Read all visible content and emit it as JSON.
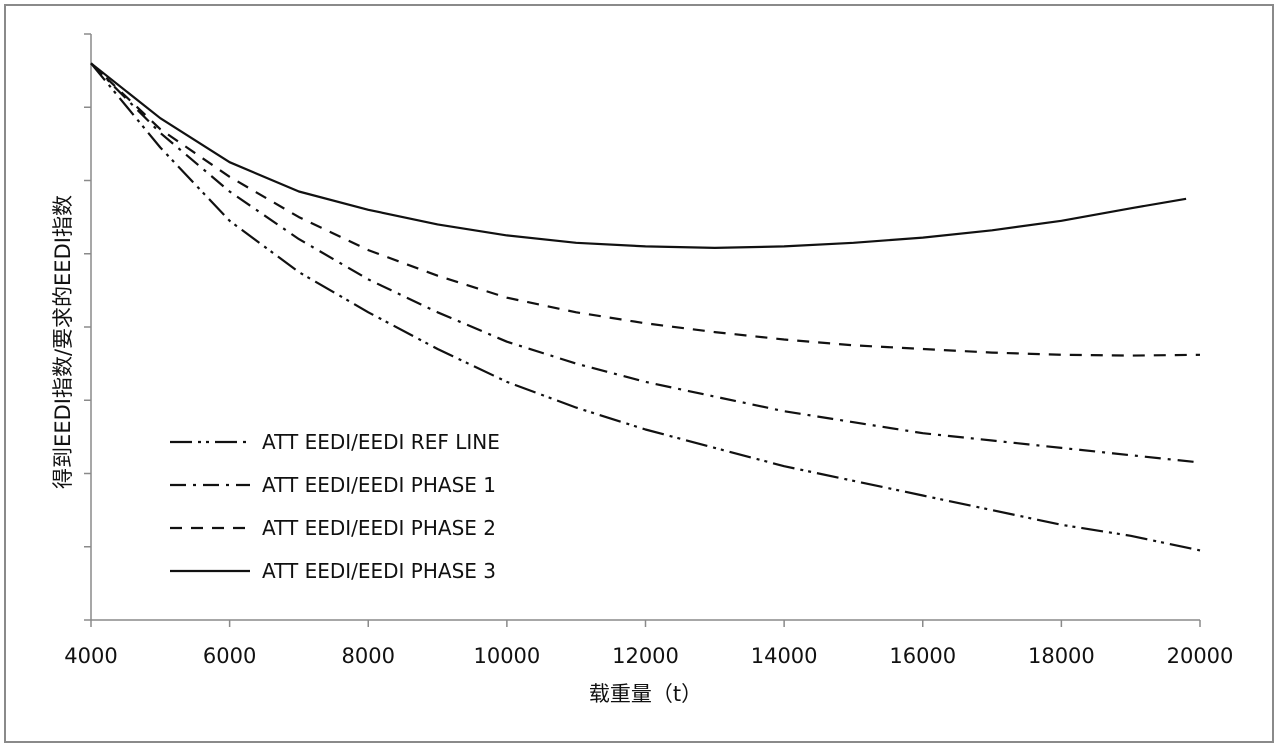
{
  "chart_data": {
    "type": "line",
    "title": "",
    "xlabel": "载重量（t）",
    "ylabel": "得到EEDI指数/要求的EEDI指数",
    "xlim": [
      4000,
      20000
    ],
    "ylim": [
      0,
      8
    ],
    "x_ticks": [
      "4000",
      "6000",
      "8000",
      "10000",
      "12000",
      "14000",
      "16000",
      "18000",
      "20000"
    ],
    "y_tick_labels_shown": false,
    "grid": false,
    "legend_position": "lower-left",
    "series": [
      {
        "name": "ATT EEDI/EEDI REF LINE",
        "dash": "dash-dot-dot",
        "points": [
          [
            4000,
            7.6
          ],
          [
            5000,
            6.45
          ],
          [
            6000,
            5.45
          ],
          [
            7000,
            4.75
          ],
          [
            8000,
            4.2
          ],
          [
            9000,
            3.7
          ],
          [
            10000,
            3.25
          ],
          [
            11000,
            2.9
          ],
          [
            12000,
            2.6
          ],
          [
            13000,
            2.35
          ],
          [
            14000,
            2.1
          ],
          [
            15000,
            1.9
          ],
          [
            16000,
            1.7
          ],
          [
            17000,
            1.5
          ],
          [
            18000,
            1.3
          ],
          [
            19000,
            1.15
          ],
          [
            20000,
            0.95
          ]
        ]
      },
      {
        "name": "ATT EEDI/EEDI PHASE 1",
        "dash": "dash-dot",
        "points": [
          [
            4000,
            7.6
          ],
          [
            5000,
            6.65
          ],
          [
            6000,
            5.85
          ],
          [
            7000,
            5.2
          ],
          [
            8000,
            4.65
          ],
          [
            9000,
            4.2
          ],
          [
            10000,
            3.8
          ],
          [
            11000,
            3.5
          ],
          [
            12000,
            3.25
          ],
          [
            13000,
            3.05
          ],
          [
            14000,
            2.85
          ],
          [
            15000,
            2.7
          ],
          [
            16000,
            2.55
          ],
          [
            17000,
            2.45
          ],
          [
            18000,
            2.35
          ],
          [
            19000,
            2.25
          ],
          [
            20000,
            2.15
          ]
        ]
      },
      {
        "name": "ATT EEDI/EEDI PHASE 2",
        "dash": "dashed",
        "points": [
          [
            4000,
            7.6
          ],
          [
            5000,
            6.7
          ],
          [
            6000,
            6.05
          ],
          [
            7000,
            5.5
          ],
          [
            8000,
            5.05
          ],
          [
            9000,
            4.7
          ],
          [
            10000,
            4.4
          ],
          [
            11000,
            4.2
          ],
          [
            12000,
            4.05
          ],
          [
            13000,
            3.93
          ],
          [
            14000,
            3.83
          ],
          [
            15000,
            3.75
          ],
          [
            16000,
            3.7
          ],
          [
            17000,
            3.65
          ],
          [
            18000,
            3.62
          ],
          [
            19000,
            3.61
          ],
          [
            20000,
            3.62
          ]
        ]
      },
      {
        "name": "ATT EEDI/EEDI PHASE 3",
        "dash": "solid",
        "points": [
          [
            4000,
            7.6
          ],
          [
            5000,
            6.85
          ],
          [
            6000,
            6.25
          ],
          [
            7000,
            5.85
          ],
          [
            8000,
            5.6
          ],
          [
            9000,
            5.4
          ],
          [
            10000,
            5.25
          ],
          [
            11000,
            5.15
          ],
          [
            12000,
            5.1
          ],
          [
            13000,
            5.08
          ],
          [
            14000,
            5.1
          ],
          [
            15000,
            5.15
          ],
          [
            16000,
            5.22
          ],
          [
            17000,
            5.32
          ],
          [
            18000,
            5.45
          ],
          [
            19000,
            5.62
          ],
          [
            19800,
            5.75
          ]
        ]
      }
    ]
  }
}
